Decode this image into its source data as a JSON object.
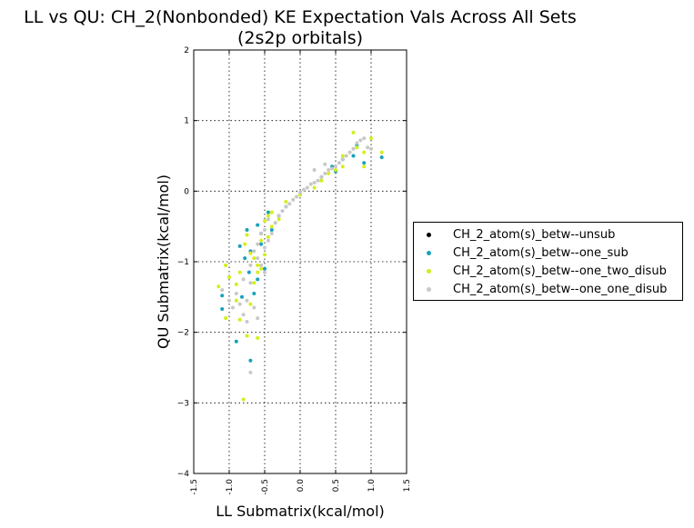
{
  "chart_data": {
    "type": "scatter",
    "title": "LL vs QU: CH_2(Nonbonded) KE Expectation Vals Across All Sets",
    "subtitle": "(2s2p orbitals)",
    "xlabel": "LL Submatrix(kcal/mol)",
    "ylabel": "QU Submatrix(kcal/mol)",
    "xlim": [
      -1.5,
      1.5
    ],
    "ylim": [
      -4,
      2
    ],
    "xticks": [
      "-1.5",
      "-1.0",
      "-0.5",
      "0.0",
      "0.5",
      "1.0",
      "1.5"
    ],
    "yticks": [
      "2",
      "1",
      "0",
      "−1",
      "−2",
      "−3",
      "−4"
    ],
    "grid": true,
    "legend_position": "right-outside",
    "series": [
      {
        "name": "CH_2_atom(s)_betw--unsub",
        "color": "#000000",
        "points": []
      },
      {
        "name": "CH_2_atom(s)_betw--one_sub",
        "color": "#17a2b8",
        "points": [
          [
            -1.1,
            -1.67
          ],
          [
            -1.1,
            -1.48
          ],
          [
            -0.9,
            -2.13
          ],
          [
            -0.7,
            -2.4
          ],
          [
            -0.78,
            -0.95
          ],
          [
            -0.85,
            -0.78
          ],
          [
            -0.75,
            -0.55
          ],
          [
            -0.6,
            -0.48
          ],
          [
            -0.55,
            -0.6
          ],
          [
            -0.45,
            -0.3
          ],
          [
            -0.72,
            -1.15
          ],
          [
            -0.6,
            -1.25
          ],
          [
            -0.65,
            -1.45
          ],
          [
            -0.82,
            -1.5
          ],
          [
            -0.7,
            -0.85
          ],
          [
            -0.55,
            -0.75
          ],
          [
            -0.5,
            -1.1
          ],
          [
            -0.4,
            -0.55
          ],
          [
            -0.3,
            -0.35
          ],
          [
            -0.2,
            -0.22
          ],
          [
            0.3,
            0.2
          ],
          [
            0.45,
            0.35
          ],
          [
            0.6,
            0.45
          ],
          [
            0.75,
            0.5
          ],
          [
            0.8,
            0.65
          ],
          [
            0.9,
            0.4
          ],
          [
            1.15,
            0.48
          ],
          [
            0.5,
            0.28
          ]
        ]
      },
      {
        "name": "CH_2_atom(s)_betw--one_two_disub",
        "color": "#d4ee1c",
        "points": [
          [
            -1.15,
            -1.35
          ],
          [
            -1.05,
            -1.05
          ],
          [
            -1.0,
            -1.22
          ],
          [
            -1.05,
            -1.8
          ],
          [
            -0.9,
            -1.55
          ],
          [
            -0.85,
            -1.82
          ],
          [
            -0.8,
            -2.95
          ],
          [
            -0.75,
            -2.05
          ],
          [
            -0.6,
            -2.08
          ],
          [
            -0.7,
            -1.6
          ],
          [
            -0.78,
            -0.75
          ],
          [
            -0.75,
            -0.62
          ],
          [
            -0.7,
            -0.88
          ],
          [
            -0.65,
            -0.95
          ],
          [
            -0.6,
            -1.05
          ],
          [
            -0.55,
            -1.1
          ],
          [
            -0.5,
            -0.9
          ],
          [
            -0.55,
            -0.7
          ],
          [
            -0.45,
            -0.65
          ],
          [
            -0.4,
            -0.5
          ],
          [
            -0.35,
            -0.45
          ],
          [
            -0.3,
            -0.4
          ],
          [
            -0.5,
            -0.42
          ],
          [
            -0.45,
            -0.35
          ],
          [
            -0.4,
            -0.3
          ],
          [
            -0.6,
            -1.15
          ],
          [
            -0.65,
            -1.3
          ],
          [
            -0.85,
            -1.15
          ],
          [
            -0.9,
            -1.32
          ],
          [
            -0.2,
            -0.15
          ],
          [
            0.0,
            -0.05
          ],
          [
            0.2,
            0.05
          ],
          [
            0.3,
            0.15
          ],
          [
            0.4,
            0.25
          ],
          [
            0.5,
            0.3
          ],
          [
            0.6,
            0.5
          ],
          [
            0.7,
            0.55
          ],
          [
            0.75,
            0.83
          ],
          [
            0.8,
            0.62
          ],
          [
            0.9,
            0.55
          ],
          [
            1.0,
            0.75
          ],
          [
            1.15,
            0.55
          ],
          [
            0.9,
            0.35
          ],
          [
            0.6,
            0.35
          ]
        ]
      },
      {
        "name": "CH_2_atom(s)_betw--one_one_disub",
        "color": "#c8c8c8",
        "points": [
          [
            -1.1,
            -1.4
          ],
          [
            -1.0,
            -1.55
          ],
          [
            -0.95,
            -1.65
          ],
          [
            -0.9,
            -1.45
          ],
          [
            -0.85,
            -1.6
          ],
          [
            -0.8,
            -1.75
          ],
          [
            -0.75,
            -1.85
          ],
          [
            -0.7,
            -2.57
          ],
          [
            -0.75,
            -1.55
          ],
          [
            -0.7,
            -1.3
          ],
          [
            -0.7,
            -1.05
          ],
          [
            -0.65,
            -0.85
          ],
          [
            -0.6,
            -0.75
          ],
          [
            -0.55,
            -0.6
          ],
          [
            -0.5,
            -0.55
          ],
          [
            -0.5,
            -0.8
          ],
          [
            -0.45,
            -0.7
          ],
          [
            -0.4,
            -0.6
          ],
          [
            -0.35,
            -0.45
          ],
          [
            -0.3,
            -0.35
          ],
          [
            -0.25,
            -0.28
          ],
          [
            -0.2,
            -0.22
          ],
          [
            -0.15,
            -0.18
          ],
          [
            -0.1,
            -0.12
          ],
          [
            -0.05,
            -0.08
          ],
          [
            0.0,
            -0.02
          ],
          [
            0.05,
            0.02
          ],
          [
            0.1,
            0.05
          ],
          [
            0.15,
            0.1
          ],
          [
            0.2,
            0.12
          ],
          [
            0.25,
            0.15
          ],
          [
            0.3,
            0.2
          ],
          [
            0.35,
            0.25
          ],
          [
            0.4,
            0.3
          ],
          [
            0.45,
            0.32
          ],
          [
            0.5,
            0.35
          ],
          [
            0.55,
            0.4
          ],
          [
            0.6,
            0.45
          ],
          [
            0.65,
            0.5
          ],
          [
            0.7,
            0.55
          ],
          [
            0.75,
            0.6
          ],
          [
            0.8,
            0.68
          ],
          [
            0.85,
            0.72
          ],
          [
            0.9,
            0.75
          ],
          [
            0.95,
            0.62
          ],
          [
            1.0,
            0.6
          ],
          [
            -0.6,
            -0.95
          ],
          [
            -0.55,
            -1.05
          ],
          [
            -0.5,
            -1.15
          ],
          [
            -0.45,
            -0.4
          ],
          [
            -0.65,
            -1.65
          ],
          [
            -0.6,
            -1.8
          ],
          [
            -0.8,
            -1.25
          ],
          [
            0.2,
            0.3
          ],
          [
            0.35,
            0.38
          ]
        ]
      }
    ]
  }
}
